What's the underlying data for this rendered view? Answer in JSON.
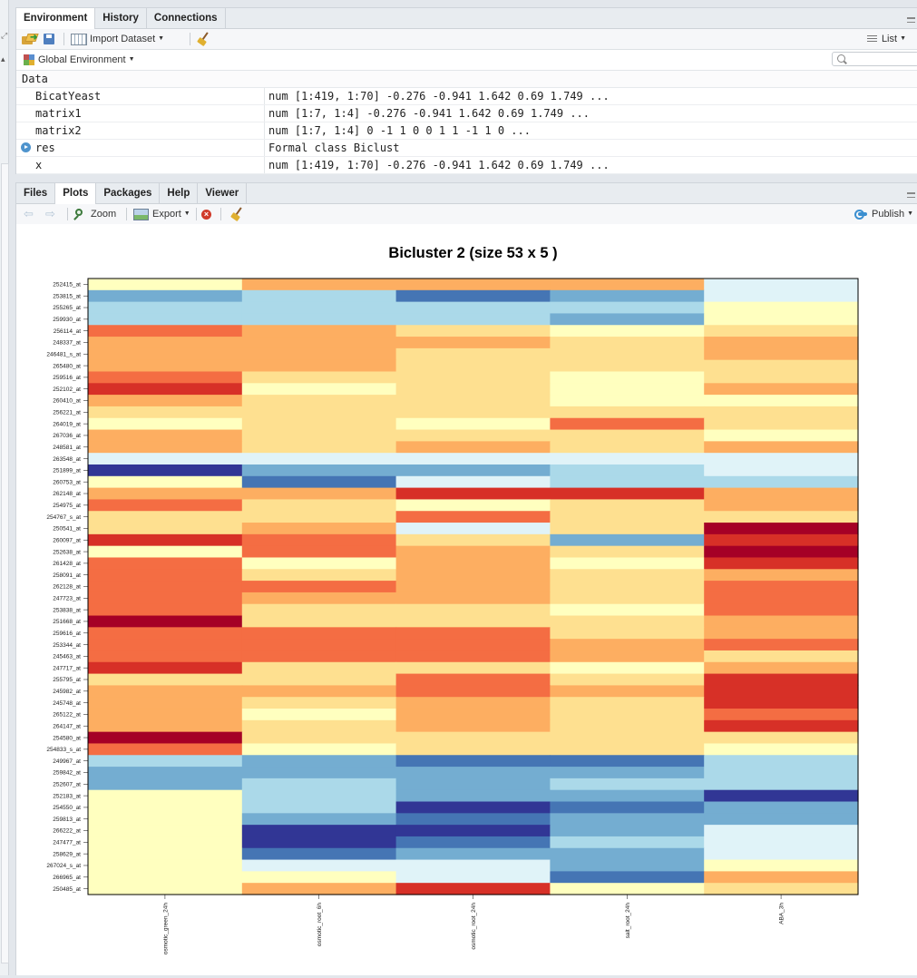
{
  "env_pane": {
    "tabs": [
      "Environment",
      "History",
      "Connections"
    ],
    "active_tab": 0,
    "toolbar": {
      "import_label": "Import Dataset",
      "view_label": "List"
    },
    "scope_label": "Global Environment",
    "section_header": "Data",
    "rows": [
      {
        "name": "BicatYeast",
        "value": "num [1:419, 1:70] -0.276 -0.941 1.642 0.69 1.749 ...",
        "expandable": false
      },
      {
        "name": "matrix1",
        "value": "num [1:7, 1:4] -0.276 -0.941 1.642 0.69 1.749 ...",
        "expandable": false
      },
      {
        "name": "matrix2",
        "value": "num [1:7, 1:4] 0 -1 1 0 0 1 1 -1 1 0 ...",
        "expandable": false
      },
      {
        "name": "res",
        "value": "Formal class Biclust",
        "expandable": true
      },
      {
        "name": "x",
        "value": "num [1:419, 1:70] -0.276 -0.941 1.642 0.69 1.749 ...",
        "expandable": false
      }
    ]
  },
  "plot_pane": {
    "tabs": [
      "Files",
      "Plots",
      "Packages",
      "Help",
      "Viewer"
    ],
    "active_tab": 1,
    "toolbar": {
      "zoom_label": "Zoom",
      "export_label": "Export",
      "publish_label": "Publish"
    }
  },
  "colors": {
    "accent": "#4f94cd",
    "tab_bg": "#e8ecf0",
    "pane_border": "#cfd4da"
  },
  "chart_data": {
    "type": "heatmap",
    "title": "Bicluster  2  (size  53 x 5 )",
    "columns": [
      "osmotic_green_24h",
      "osmotic_root_6h",
      "osmotic_root_24h",
      "salt_root_24h",
      "ABA_3h"
    ],
    "rows": [
      "252415_at",
      "253815_at",
      "255265_at",
      "259930_at",
      "256114_at",
      "248337_at",
      "246481_s_at",
      "265480_at",
      "259516_at",
      "252102_at",
      "260410_at",
      "256221_at",
      "264019_at",
      "267036_at",
      "248581_at",
      "263548_at",
      "251899_at",
      "260753_at",
      "262148_at",
      "254975_at",
      "254767_s_at",
      "250541_at",
      "260097_at",
      "252638_at",
      "261428_at",
      "258091_at",
      "262128_at",
      "247723_at",
      "253838_at",
      "251668_at",
      "259616_at",
      "253344_at",
      "245463_at",
      "247717_at",
      "255795_at",
      "245982_at",
      "245748_at",
      "265122_at",
      "264147_at",
      "254580_at",
      "254833_s_at",
      "249967_at",
      "259842_at",
      "252607_at",
      "252183_at",
      "254550_at",
      "259813_at",
      "266222_at",
      "247477_at",
      "258629_at",
      "267024_s_at",
      "266965_at",
      "250485_at"
    ],
    "scale": [
      "#313695",
      "#4575b4",
      "#74add1",
      "#abd9e9",
      "#e0f3f8",
      "#ffffbf",
      "#fee090",
      "#fdae61",
      "#f46d43",
      "#d73027",
      "#a50026"
    ],
    "values": [
      [
        5,
        7,
        7,
        7,
        4
      ],
      [
        2,
        3,
        1,
        2,
        4
      ],
      [
        3,
        3,
        3,
        3,
        5
      ],
      [
        3,
        3,
        3,
        2,
        5
      ],
      [
        8,
        7,
        6,
        5,
        6
      ],
      [
        7,
        7,
        7,
        6,
        7
      ],
      [
        7,
        7,
        6,
        6,
        7
      ],
      [
        7,
        7,
        6,
        6,
        6
      ],
      [
        8,
        6,
        6,
        5,
        6
      ],
      [
        9,
        5,
        6,
        5,
        7
      ],
      [
        7,
        6,
        6,
        5,
        5
      ],
      [
        6,
        6,
        6,
        6,
        6
      ],
      [
        5,
        6,
        5,
        8,
        6
      ],
      [
        7,
        6,
        6,
        6,
        5
      ],
      [
        7,
        6,
        7,
        6,
        7
      ],
      [
        4,
        4,
        4,
        4,
        4
      ],
      [
        0,
        2,
        2,
        3,
        4
      ],
      [
        5,
        1,
        4,
        3,
        3
      ],
      [
        7,
        7,
        9,
        9,
        7
      ],
      [
        8,
        6,
        5,
        6,
        7
      ],
      [
        6,
        6,
        8,
        6,
        6
      ],
      [
        6,
        7,
        4,
        6,
        10
      ],
      [
        9,
        8,
        6,
        2,
        9
      ],
      [
        5,
        8,
        7,
        6,
        10
      ],
      [
        8,
        5,
        7,
        5,
        9
      ],
      [
        8,
        6,
        7,
        6,
        7
      ],
      [
        8,
        8,
        7,
        6,
        8
      ],
      [
        8,
        7,
        7,
        6,
        8
      ],
      [
        8,
        6,
        6,
        5,
        8
      ],
      [
        10,
        6,
        6,
        6,
        7
      ],
      [
        8,
        8,
        8,
        6,
        7
      ],
      [
        8,
        8,
        8,
        7,
        8
      ],
      [
        8,
        8,
        8,
        7,
        6
      ],
      [
        9,
        6,
        6,
        5,
        7
      ],
      [
        6,
        6,
        8,
        6,
        9
      ],
      [
        7,
        7,
        8,
        7,
        9
      ],
      [
        7,
        6,
        7,
        6,
        9
      ],
      [
        7,
        5,
        7,
        6,
        8
      ],
      [
        7,
        6,
        7,
        6,
        9
      ],
      [
        10,
        6,
        6,
        6,
        6
      ],
      [
        8,
        5,
        6,
        6,
        5
      ],
      [
        3,
        2,
        1,
        1,
        3
      ],
      [
        2,
        2,
        2,
        2,
        3
      ],
      [
        2,
        3,
        2,
        3,
        3
      ],
      [
        5,
        3,
        2,
        2,
        0
      ],
      [
        5,
        3,
        0,
        1,
        2
      ],
      [
        5,
        2,
        1,
        2,
        2
      ],
      [
        5,
        0,
        0,
        2,
        4
      ],
      [
        5,
        0,
        1,
        3,
        4
      ],
      [
        5,
        1,
        2,
        2,
        4
      ],
      [
        5,
        4,
        4,
        2,
        5
      ],
      [
        5,
        5,
        4,
        1,
        7
      ],
      [
        5,
        7,
        9,
        5,
        6
      ]
    ]
  }
}
